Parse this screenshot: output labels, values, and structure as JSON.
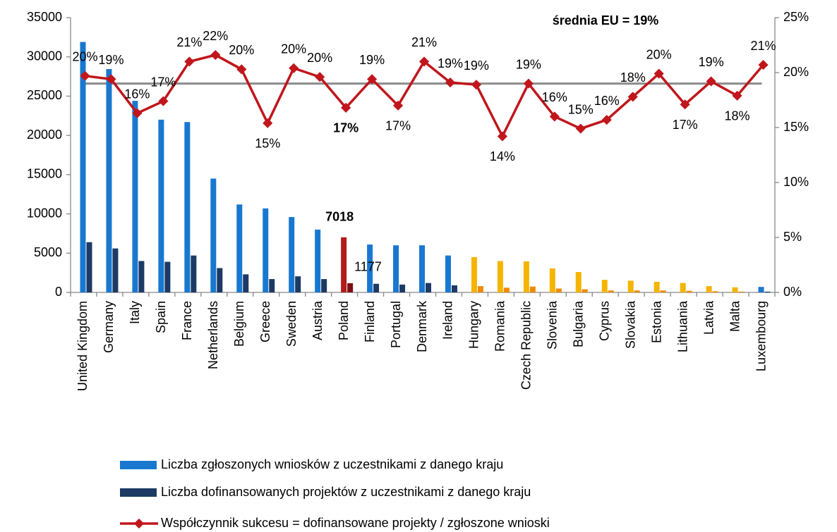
{
  "chart_data": {
    "type": "bar_line",
    "categories": [
      "United Kingdom",
      "Germany",
      "Italy",
      "Spain",
      "France",
      "Netherlands",
      "Belgium",
      "Greece",
      "Sweden",
      "Austria",
      "Poland",
      "Finland",
      "Portugal",
      "Denmark",
      "Ireland",
      "Hungary",
      "Romania",
      "Czech Republic",
      "Slovenia",
      "Bulgaria",
      "Cyprus",
      "Slovakia",
      "Estonia",
      "Lithuania",
      "Latvia",
      "Malta",
      "Luxembourg"
    ],
    "ylim": [
      0,
      35000
    ],
    "yticks": [
      0,
      5000,
      10000,
      15000,
      20000,
      25000,
      30000,
      35000
    ],
    "y2lim": [
      0,
      25
    ],
    "y2ticks": [
      {
        "value": 0,
        "label": "0%"
      },
      {
        "value": 5,
        "label": "5%"
      },
      {
        "value": 10,
        "label": "10%"
      },
      {
        "value": 15,
        "label": "15%"
      },
      {
        "value": 20,
        "label": "20%"
      },
      {
        "value": 25,
        "label": "25%"
      }
    ],
    "series": [
      {
        "name": "Liczba zgłoszonych wniosków z uczestnikami z danego kraju",
        "type": "bar",
        "color": "#1878d0",
        "colors": [
          "#1878d0",
          "#1878d0",
          "#1878d0",
          "#1878d0",
          "#1878d0",
          "#1878d0",
          "#1878d0",
          "#1878d0",
          "#1878d0",
          "#1878d0",
          "#b31b1b",
          "#1878d0",
          "#1878d0",
          "#1878d0",
          "#1878d0",
          "#f5b400",
          "#f5b400",
          "#f5b400",
          "#f5b400",
          "#f5b400",
          "#f5b400",
          "#f5b400",
          "#f5b400",
          "#f5b400",
          "#f5b400",
          "#f5b400",
          "#1878d0"
        ],
        "values": [
          31900,
          28450,
          24400,
          22000,
          21700,
          14500,
          11200,
          10700,
          9600,
          8000,
          7018,
          6100,
          6000,
          6000,
          4700,
          4500,
          4000,
          3950,
          3050,
          2600,
          1600,
          1500,
          1350,
          1200,
          800,
          650,
          700
        ],
        "value_labels": [
          null,
          null,
          null,
          null,
          null,
          null,
          null,
          null,
          null,
          null,
          "7018",
          null,
          null,
          null,
          null,
          null,
          null,
          null,
          null,
          null,
          null,
          null,
          null,
          null,
          null,
          null,
          null
        ]
      },
      {
        "name": "Liczba dofinansowanych projektów z uczestnikami z danego kraju",
        "type": "bar",
        "color": "#1c3a64",
        "colors": [
          "#1c3a64",
          "#1c3a64",
          "#1c3a64",
          "#1c3a64",
          "#1c3a64",
          "#1c3a64",
          "#1c3a64",
          "#1c3a64",
          "#1c3a64",
          "#1c3a64",
          "#7a1010",
          "#1c3a64",
          "#1c3a64",
          "#1c3a64",
          "#1c3a64",
          "#f08a00",
          "#f08a00",
          "#f08a00",
          "#f08a00",
          "#f08a00",
          "#f08a00",
          "#f08a00",
          "#f08a00",
          "#f08a00",
          "#f08a00",
          "#f08a00",
          "#1c3a64"
        ],
        "values": [
          6400,
          5600,
          4000,
          3900,
          4700,
          3100,
          2300,
          1700,
          2050,
          1700,
          1177,
          1100,
          1000,
          1200,
          900,
          800,
          600,
          750,
          500,
          400,
          250,
          250,
          250,
          200,
          150,
          100,
          100
        ],
        "value_labels": [
          null,
          null,
          null,
          null,
          null,
          null,
          null,
          null,
          null,
          null,
          "1177",
          null,
          null,
          null,
          null,
          null,
          null,
          null,
          null,
          null,
          null,
          null,
          null,
          null,
          null,
          null,
          null
        ]
      },
      {
        "name": "Współczynnik sukcesu = dofinansowane projekty / zgłoszone wnioski",
        "type": "line",
        "axis": "y2",
        "color": "#c0161c",
        "values": [
          19.7,
          19.4,
          16.3,
          17.4,
          21.0,
          21.6,
          20.3,
          15.4,
          20.4,
          19.6,
          16.8,
          19.4,
          17.0,
          21.0,
          19.1,
          18.9,
          14.2,
          19.0,
          16.0,
          14.9,
          15.7,
          17.8,
          19.9,
          17.1,
          19.2,
          17.9,
          20.7
        ],
        "value_labels": [
          "20%",
          "19%",
          "16%",
          "17%",
          "21%",
          "22%",
          "20%",
          "15%",
          "20%",
          "20%",
          "17%",
          "19%",
          "17%",
          "21%",
          "19%",
          "19%",
          "14%",
          "19%",
          "16%",
          "15%",
          "16%",
          "18%",
          "20%",
          "17%",
          "19%",
          "18%",
          "21%"
        ],
        "highlight_color": "#e02020"
      }
    ],
    "reference_line": {
      "value": 19,
      "axis": "y2",
      "label": "średnia EU = 19%",
      "color": "#8c8c8c"
    }
  }
}
